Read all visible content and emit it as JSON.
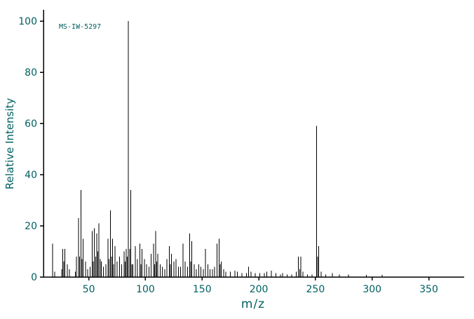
{
  "chart_data": {
    "type": "bar",
    "title": "",
    "annotation": "MS-IW-5297",
    "xlabel": "m/z",
    "ylabel": "Relative Intensity",
    "xlim": [
      10,
      380
    ],
    "ylim": [
      0,
      100
    ],
    "x_ticks": [
      50,
      100,
      150,
      200,
      250,
      300,
      350
    ],
    "y_ticks": [
      0,
      20,
      40,
      60,
      80,
      100
    ],
    "grid": false,
    "legend": "none",
    "colors": {
      "peak": "#000000",
      "axis": "#000000",
      "text": "#006060"
    },
    "peaks": [
      [
        18,
        13
      ],
      [
        20,
        2
      ],
      [
        26,
        3
      ],
      [
        27,
        11
      ],
      [
        28,
        6
      ],
      [
        29,
        11
      ],
      [
        31,
        5
      ],
      [
        33,
        3
      ],
      [
        38,
        2
      ],
      [
        39,
        8
      ],
      [
        41,
        23
      ],
      [
        42,
        8
      ],
      [
        43,
        34
      ],
      [
        44,
        7
      ],
      [
        45,
        15
      ],
      [
        47,
        6
      ],
      [
        49,
        3
      ],
      [
        51,
        4
      ],
      [
        53,
        18
      ],
      [
        54,
        6
      ],
      [
        55,
        19
      ],
      [
        56,
        8
      ],
      [
        57,
        17
      ],
      [
        58,
        10
      ],
      [
        59,
        21
      ],
      [
        60,
        7
      ],
      [
        61,
        6
      ],
      [
        63,
        4
      ],
      [
        65,
        5
      ],
      [
        67,
        15
      ],
      [
        68,
        7
      ],
      [
        69,
        26
      ],
      [
        70,
        8
      ],
      [
        71,
        15
      ],
      [
        72,
        5
      ],
      [
        73,
        12
      ],
      [
        75,
        6
      ],
      [
        77,
        8
      ],
      [
        79,
        5
      ],
      [
        81,
        10
      ],
      [
        82,
        6
      ],
      [
        83,
        11
      ],
      [
        84,
        8
      ],
      [
        85,
        100
      ],
      [
        86,
        11
      ],
      [
        87,
        34
      ],
      [
        88,
        5
      ],
      [
        89,
        5
      ],
      [
        91,
        12
      ],
      [
        93,
        7
      ],
      [
        95,
        13
      ],
      [
        96,
        5
      ],
      [
        97,
        11
      ],
      [
        99,
        7
      ],
      [
        101,
        5
      ],
      [
        103,
        4
      ],
      [
        105,
        9
      ],
      [
        107,
        13
      ],
      [
        108,
        5
      ],
      [
        109,
        18
      ],
      [
        110,
        6
      ],
      [
        111,
        9
      ],
      [
        113,
        5
      ],
      [
        115,
        4
      ],
      [
        117,
        3
      ],
      [
        119,
        7
      ],
      [
        121,
        12
      ],
      [
        122,
        5
      ],
      [
        123,
        9
      ],
      [
        125,
        6
      ],
      [
        127,
        7
      ],
      [
        129,
        4
      ],
      [
        131,
        4
      ],
      [
        133,
        13
      ],
      [
        135,
        6
      ],
      [
        137,
        4
      ],
      [
        139,
        17
      ],
      [
        140,
        6
      ],
      [
        141,
        14
      ],
      [
        143,
        5
      ],
      [
        145,
        3
      ],
      [
        147,
        5
      ],
      [
        149,
        4
      ],
      [
        151,
        3
      ],
      [
        153,
        11
      ],
      [
        155,
        5
      ],
      [
        157,
        3
      ],
      [
        159,
        3
      ],
      [
        161,
        4
      ],
      [
        163,
        13
      ],
      [
        165,
        15
      ],
      [
        166,
        5
      ],
      [
        167,
        6
      ],
      [
        169,
        3
      ],
      [
        171,
        2
      ],
      [
        175,
        2
      ],
      [
        179,
        2.5
      ],
      [
        181,
        2
      ],
      [
        185,
        1.5
      ],
      [
        189,
        1.5
      ],
      [
        191,
        4
      ],
      [
        193,
        2
      ],
      [
        197,
        1.5
      ],
      [
        201,
        1.5
      ],
      [
        205,
        1.5
      ],
      [
        207,
        2
      ],
      [
        211,
        2.5
      ],
      [
        215,
        1.5
      ],
      [
        219,
        1
      ],
      [
        221,
        1.5
      ],
      [
        225,
        1
      ],
      [
        229,
        1
      ],
      [
        233,
        2
      ],
      [
        235,
        8
      ],
      [
        236,
        3
      ],
      [
        237,
        8
      ],
      [
        239,
        2
      ],
      [
        243,
        1
      ],
      [
        247,
        1
      ],
      [
        251,
        59
      ],
      [
        252,
        8
      ],
      [
        253,
        12
      ],
      [
        255,
        2
      ],
      [
        259,
        1
      ],
      [
        265,
        1.5
      ],
      [
        271,
        1
      ],
      [
        279,
        1
      ],
      [
        295,
        0.8
      ],
      [
        309,
        0.8
      ]
    ]
  }
}
